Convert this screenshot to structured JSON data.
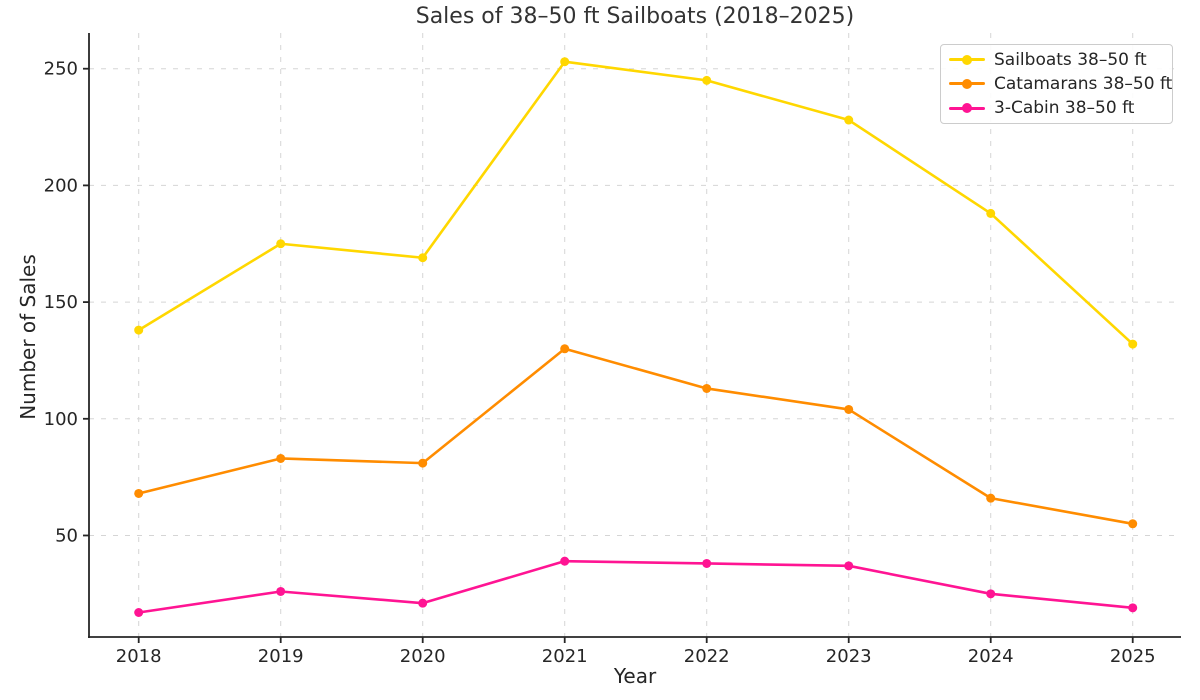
{
  "chart_data": {
    "type": "line",
    "title": "Sales of 38–50 ft Sailboats (2018–2025)",
    "xlabel": "Year",
    "ylabel": "Number of Sales",
    "x": [
      2018,
      2019,
      2020,
      2021,
      2022,
      2023,
      2024,
      2025
    ],
    "series": [
      {
        "name": "Sailboats 38–50 ft",
        "color": "#FFD700",
        "values": [
          138,
          175,
          169,
          253,
          245,
          228,
          188,
          132
        ]
      },
      {
        "name": "Catamarans 38–50 ft",
        "color": "#FF8C00",
        "values": [
          68,
          83,
          81,
          130,
          113,
          104,
          66,
          55
        ]
      },
      {
        "name": "3-Cabin 38–50 ft",
        "color": "#FF1493",
        "values": [
          17,
          26,
          21,
          39,
          38,
          37,
          25,
          19
        ]
      }
    ],
    "yticks": [
      50,
      100,
      150,
      200,
      250
    ],
    "xticks": [
      2018,
      2019,
      2020,
      2021,
      2022,
      2023,
      2024,
      2025
    ],
    "ylim": [
      6.5,
      265.3
    ],
    "xlim": [
      2017.65,
      2025.34
    ],
    "grid": true,
    "grid_style": "dashed",
    "grid_color": "#d5d5d5",
    "axis_color": "#262626",
    "legend_position": "upper right"
  }
}
